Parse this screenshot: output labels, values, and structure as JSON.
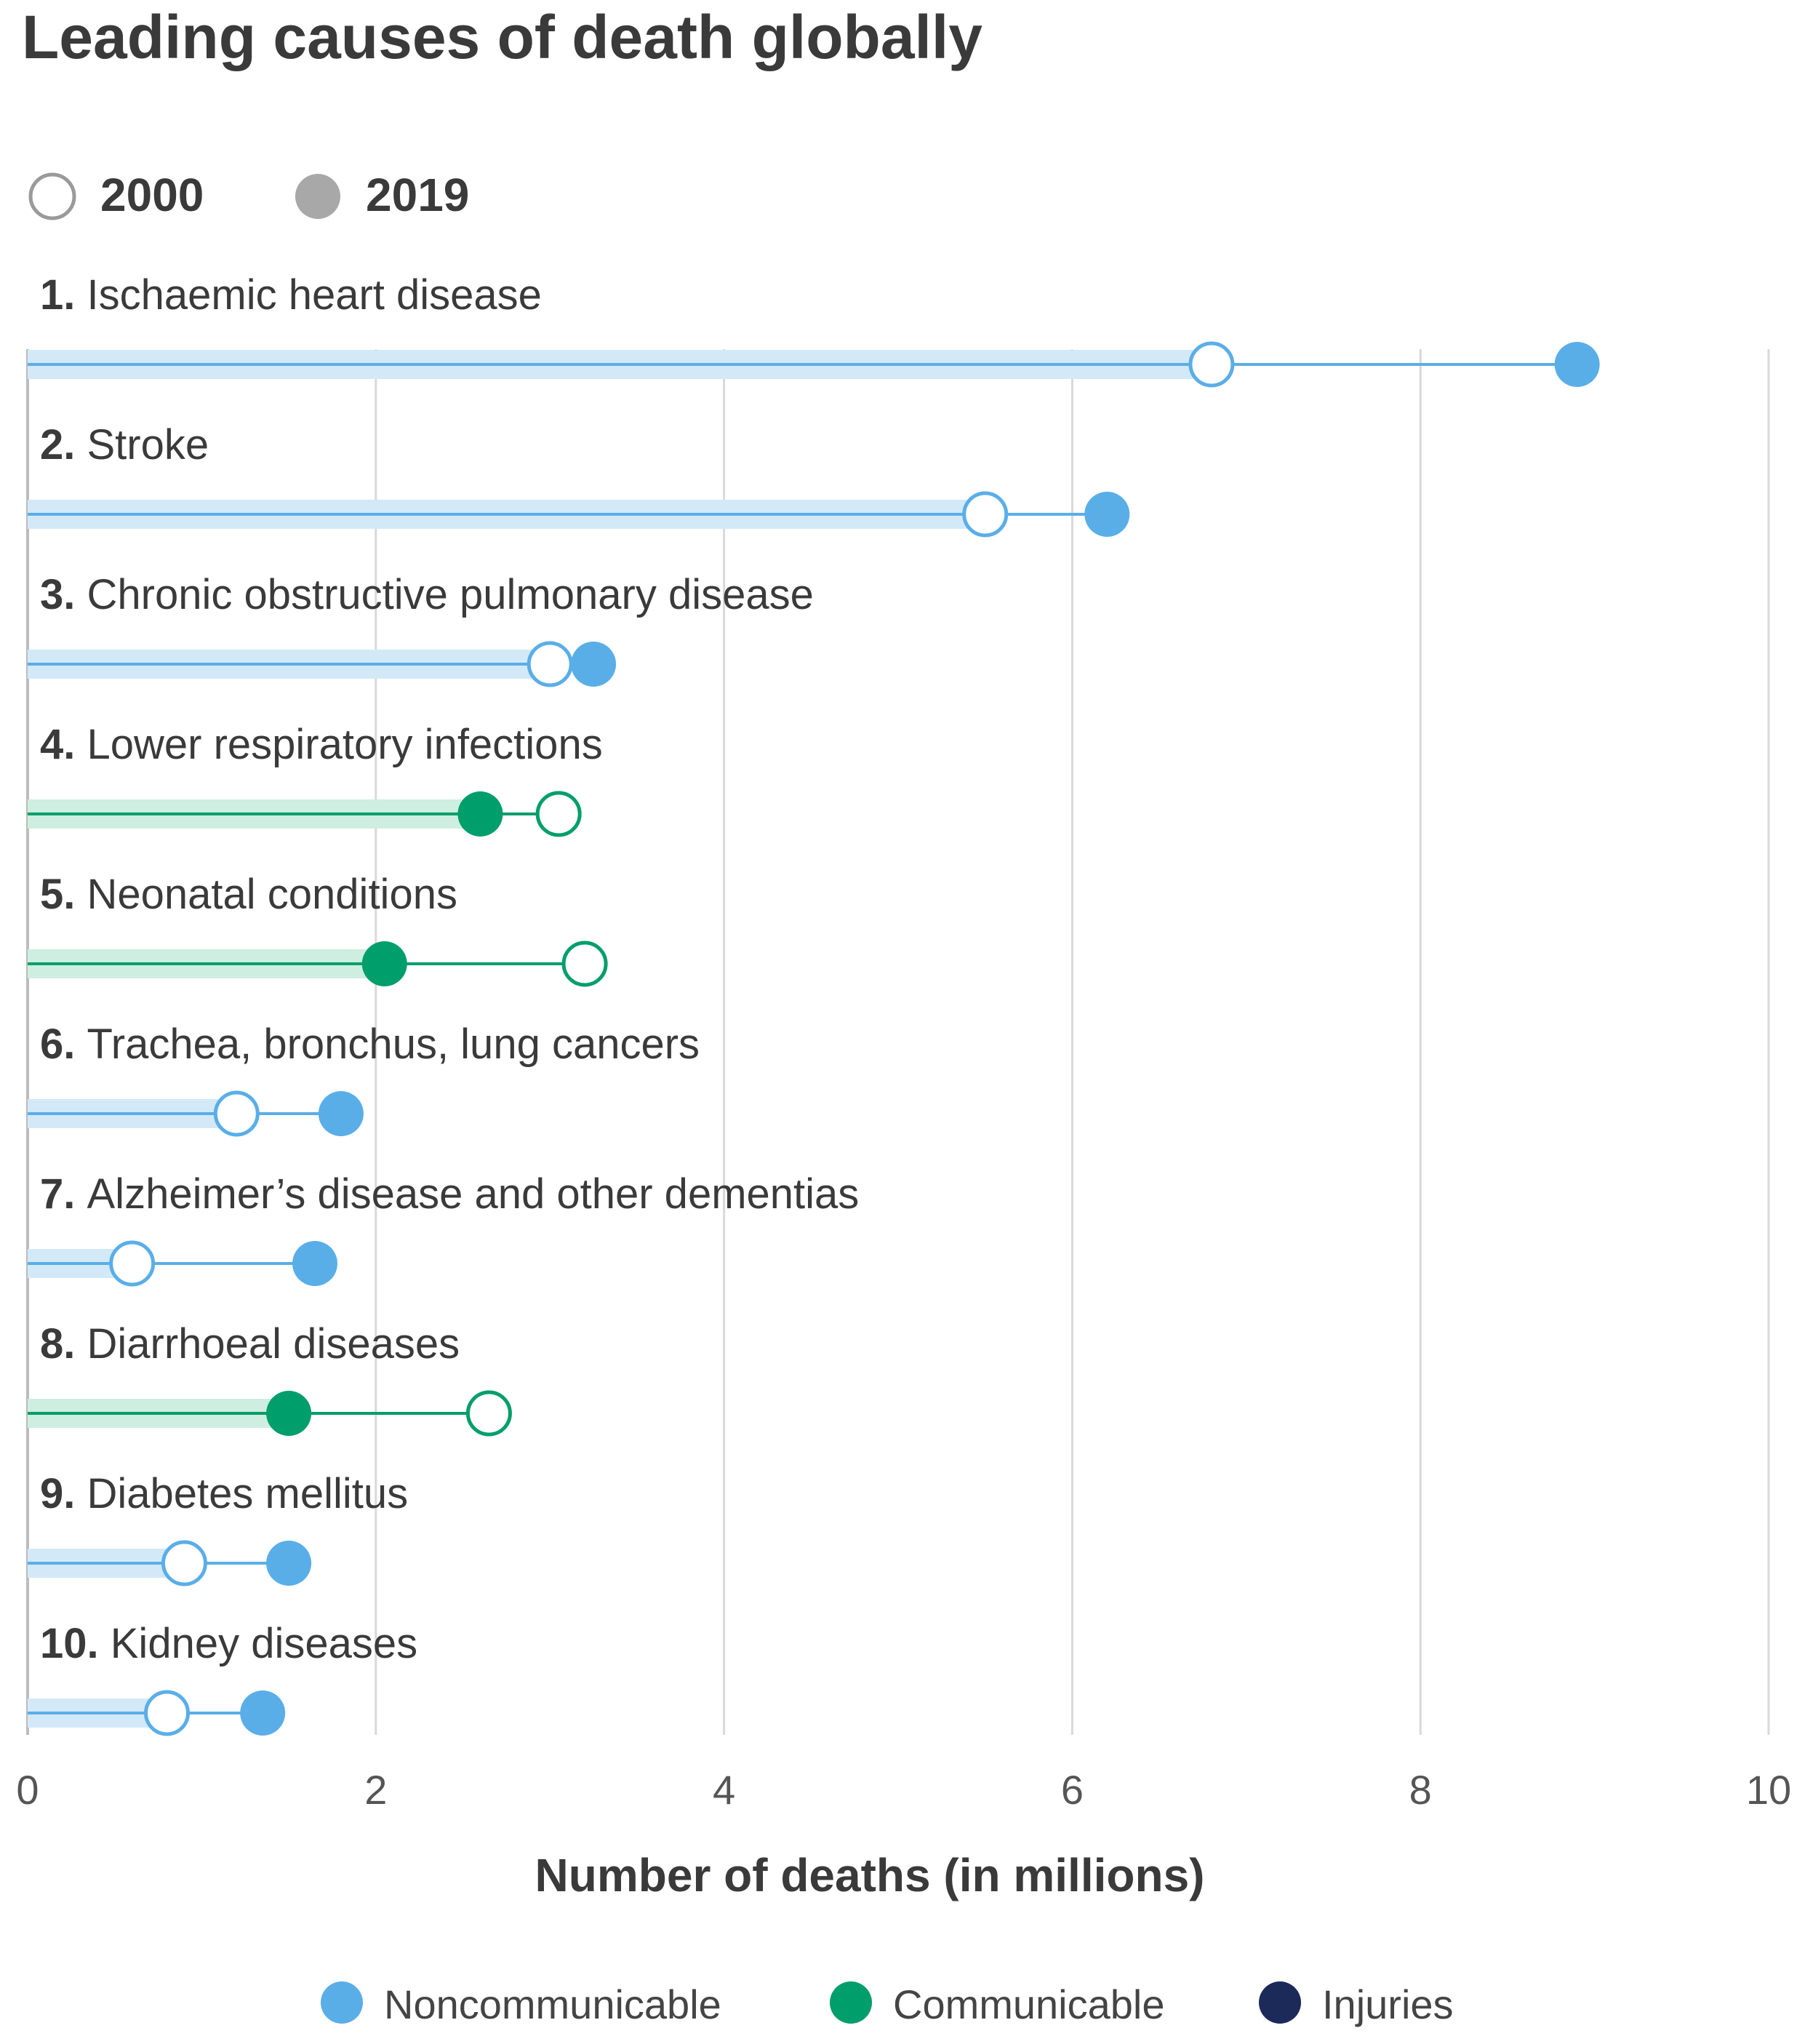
{
  "title": "Leading causes of death globally",
  "year_legend": [
    {
      "label": "2000",
      "style": "hollow"
    },
    {
      "label": "2019",
      "style": "filled"
    }
  ],
  "category_legend": [
    {
      "label": "Noncommunicable",
      "color": "#5aaee8"
    },
    {
      "label": "Communicable",
      "color": "#009e6b"
    },
    {
      "label": "Injuries",
      "color": "#1c2a5a"
    }
  ],
  "chart_data": {
    "type": "dumbbell",
    "xlabel": "Number of deaths (in millions)",
    "xlim": [
      0,
      10
    ],
    "xticks": [
      "0",
      "2",
      "4",
      "6",
      "8",
      "10"
    ],
    "grid": true,
    "legend_position": "top-left (years), bottom (categories)",
    "series": [
      {
        "name": "2000",
        "marker": "hollow circle"
      },
      {
        "name": "2019",
        "marker": "filled circle"
      }
    ],
    "causes": [
      {
        "rank": "1.",
        "name": "Ischaemic heart disease",
        "category": "Noncommunicable",
        "y2000": 6.8,
        "y2019": 8.9
      },
      {
        "rank": "2.",
        "name": "Stroke",
        "category": "Noncommunicable",
        "y2000": 5.5,
        "y2019": 6.2
      },
      {
        "rank": "3.",
        "name": "Chronic obstructive pulmonary disease",
        "category": "Noncommunicable",
        "y2000": 3.0,
        "y2019": 3.25
      },
      {
        "rank": "4.",
        "name": "Lower respiratory infections",
        "category": "Communicable",
        "y2000": 3.05,
        "y2019": 2.6
      },
      {
        "rank": "5.",
        "name": "Neonatal conditions",
        "category": "Communicable",
        "y2000": 3.2,
        "y2019": 2.05
      },
      {
        "rank": "6.",
        "name": "Trachea, bronchus, lung cancers",
        "category": "Noncommunicable",
        "y2000": 1.2,
        "y2019": 1.8
      },
      {
        "rank": "7.",
        "name": "Alzheimer’s disease and other dementias",
        "category": "Noncommunicable",
        "y2000": 0.6,
        "y2019": 1.65
      },
      {
        "rank": "8.",
        "name": "Diarrhoeal diseases",
        "category": "Communicable",
        "y2000": 2.65,
        "y2019": 1.5
      },
      {
        "rank": "9.",
        "name": "Diabetes mellitus",
        "category": "Noncommunicable",
        "y2000": 0.9,
        "y2019": 1.5
      },
      {
        "rank": "10.",
        "name": "Kidney diseases",
        "category": "Noncommunicable",
        "y2000": 0.8,
        "y2019": 1.35
      }
    ]
  }
}
